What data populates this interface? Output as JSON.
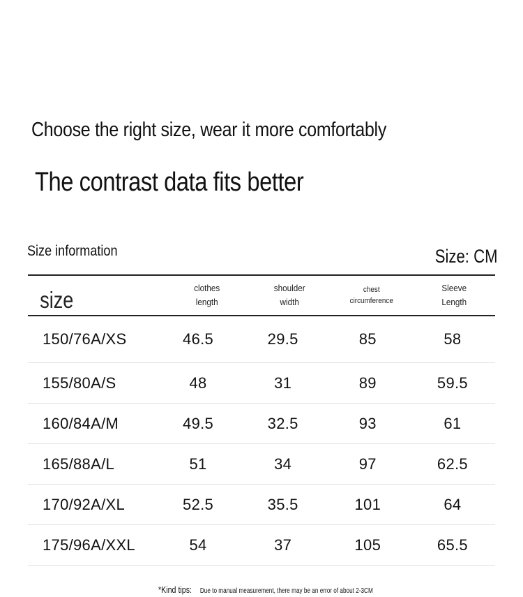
{
  "headline": "Choose the right size, wear it more comfortably",
  "subheadline": "The contrast data fits better",
  "section_label": "Size information",
  "unit_label": "Size: CM",
  "table": {
    "headers": [
      {
        "line1": "size",
        "line2": ""
      },
      {
        "line1": "clothes",
        "line2": "length"
      },
      {
        "line1": "shoulder",
        "line2": "width"
      },
      {
        "line1": "chest",
        "line2": "circumference"
      },
      {
        "line1": "Sleeve",
        "line2": "Length"
      }
    ],
    "rows": [
      [
        "150/76A/XS",
        "46.5",
        "29.5",
        "85",
        "58"
      ],
      [
        "155/80A/S",
        "48",
        "31",
        "89",
        "59.5"
      ],
      [
        "160/84A/M",
        "49.5",
        "32.5",
        "93",
        "61"
      ],
      [
        "165/88A/L",
        "51",
        "34",
        "97",
        "62.5"
      ],
      [
        "170/92A/XL",
        "52.5",
        "35.5",
        "101",
        "64"
      ],
      [
        "175/96A/XXL",
        "54",
        "37",
        "105",
        "65.5"
      ]
    ]
  },
  "tips": {
    "label": "*Kind tips:",
    "text": "Due to manual measurement, there may be an error of about 2-3CM"
  }
}
